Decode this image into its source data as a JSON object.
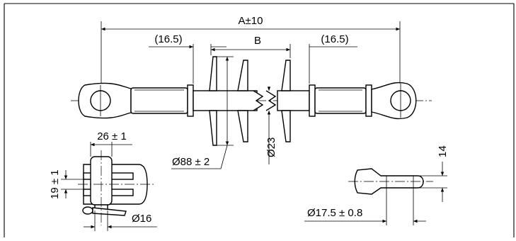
{
  "dimensions": {
    "overall_length": "A±10",
    "left_end_fitting": "(16.5)",
    "right_end_fitting": "(16.5)",
    "section_spacing": "B",
    "shed_diameter": "Ø88 ± 2",
    "core_diameter": "Ø23",
    "clevis_width": "26 ± 1",
    "clevis_slot": "19 ± 1",
    "pin_diameter": "Ø16",
    "eye_thickness": "14",
    "eye_hole_diameter": "Ø17.5 ± 0.8"
  }
}
